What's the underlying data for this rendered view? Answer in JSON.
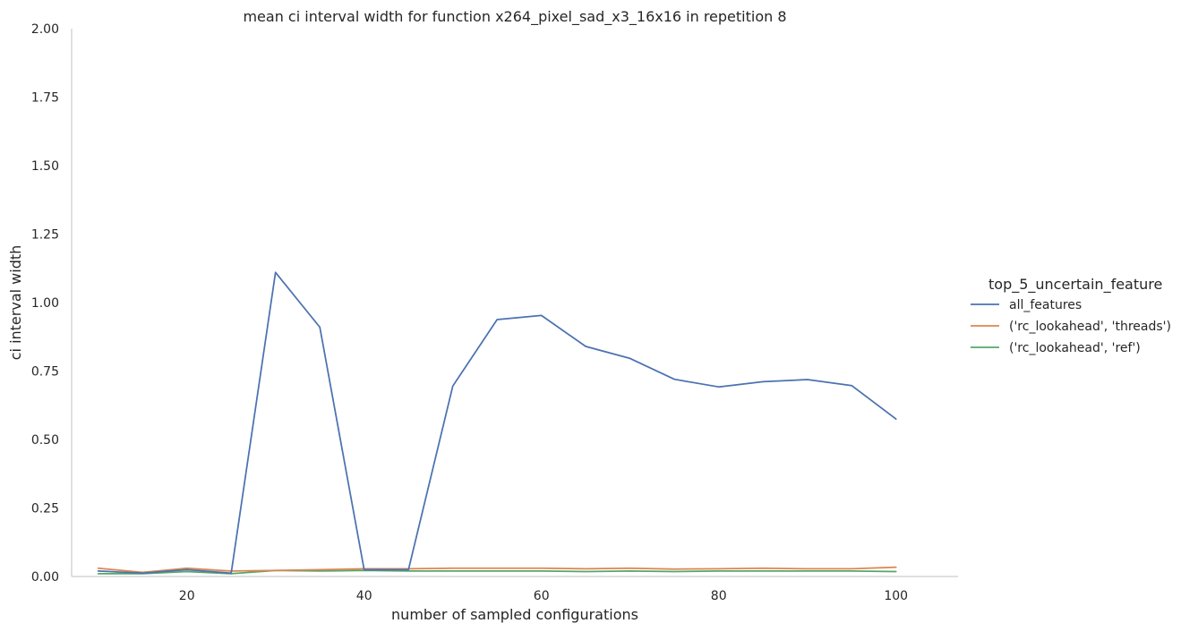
{
  "chart_data": {
    "type": "line",
    "title": "mean ci interval width for function x264_pixel_sad_x3_16x16 in repetition 8",
    "xlabel": "number of sampled configurations",
    "ylabel": "ci interval width",
    "xlim": [
      7,
      107
    ],
    "ylim": [
      0,
      2.0
    ],
    "xticks": [
      20,
      40,
      60,
      80,
      100
    ],
    "xtick_labels": [
      "20",
      "40",
      "60",
      "80",
      "100"
    ],
    "yticks": [
      0,
      0.25,
      0.5,
      0.75,
      1.0,
      1.25,
      1.5,
      1.75,
      2.0
    ],
    "ytick_labels": [
      "0.00",
      "0.25",
      "0.50",
      "0.75",
      "1.00",
      "1.25",
      "1.50",
      "1.75",
      "2.00"
    ],
    "grid": false,
    "legend": {
      "title": "top_5_uncertain_feature",
      "placement": "right"
    },
    "x": [
      10,
      15,
      20,
      25,
      30,
      35,
      40,
      45,
      50,
      55,
      60,
      65,
      70,
      75,
      80,
      85,
      90,
      95,
      100
    ],
    "series": [
      {
        "name": "all_features",
        "color": "#4c72b0",
        "values": [
          0.02,
          0.012,
          0.025,
          0.012,
          1.11,
          0.91,
          0.025,
          0.025,
          0.695,
          0.938,
          0.953,
          0.84,
          0.796,
          0.72,
          0.692,
          0.711,
          0.719,
          0.697,
          0.575
        ]
      },
      {
        "name": "('rc_lookahead', 'threads')",
        "color": "#dd8452",
        "values": [
          0.03,
          0.015,
          0.03,
          0.02,
          0.022,
          0.025,
          0.028,
          0.028,
          0.03,
          0.03,
          0.03,
          0.028,
          0.03,
          0.027,
          0.028,
          0.03,
          0.028,
          0.028,
          0.034
        ]
      },
      {
        "name": "('rc_lookahead', 'ref')",
        "color": "#55a868",
        "values": [
          0.01,
          0.01,
          0.018,
          0.01,
          0.022,
          0.02,
          0.022,
          0.02,
          0.02,
          0.02,
          0.02,
          0.018,
          0.02,
          0.018,
          0.02,
          0.02,
          0.02,
          0.02,
          0.018
        ]
      }
    ]
  }
}
